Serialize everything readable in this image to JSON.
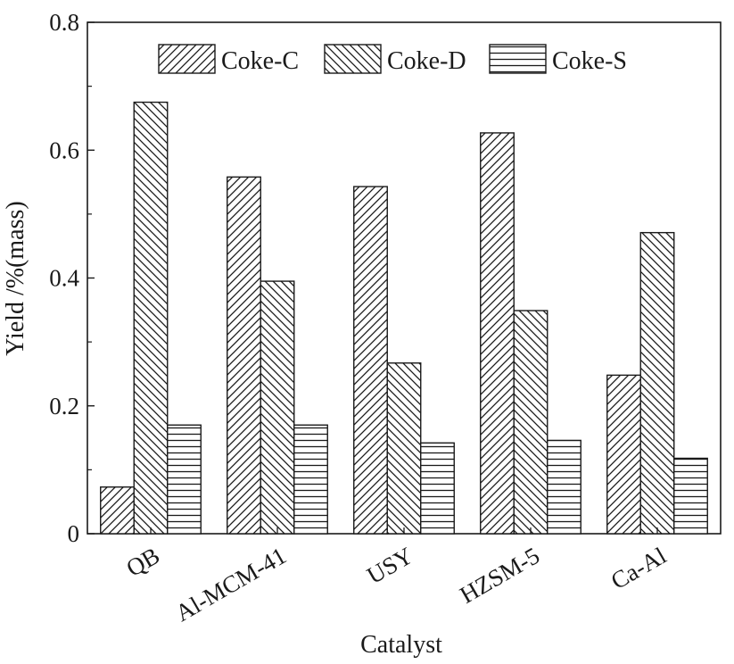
{
  "chart_data": {
    "type": "bar",
    "title": "",
    "xlabel": "Catalyst",
    "ylabel": "Yield /%(mass)",
    "ylim": [
      0,
      0.8
    ],
    "yticks": [
      0,
      0.2,
      0.4,
      0.6,
      0.8
    ],
    "ytick_labels": [
      "0",
      "0.2",
      "0.4",
      "0.6",
      "0.8"
    ],
    "categories": [
      "QB",
      "Al-MCM-41",
      "USY",
      "HZSM-5",
      "Ca-Al"
    ],
    "series": [
      {
        "name": "Coke-C",
        "pattern": "forward-diagonal-hatch",
        "values": [
          0.073,
          0.558,
          0.543,
          0.627,
          0.248
        ]
      },
      {
        "name": "Coke-D",
        "pattern": "back-diagonal-hatch",
        "values": [
          0.675,
          0.395,
          0.267,
          0.349,
          0.471
        ]
      },
      {
        "name": "Coke-S",
        "pattern": "horizontal-hatch",
        "values": [
          0.17,
          0.17,
          0.142,
          0.146,
          0.118
        ]
      }
    ],
    "legend_position": "top-center",
    "grid": false,
    "colors": {
      "stroke": "#1a1a1a",
      "background": "#ffffff"
    }
  }
}
